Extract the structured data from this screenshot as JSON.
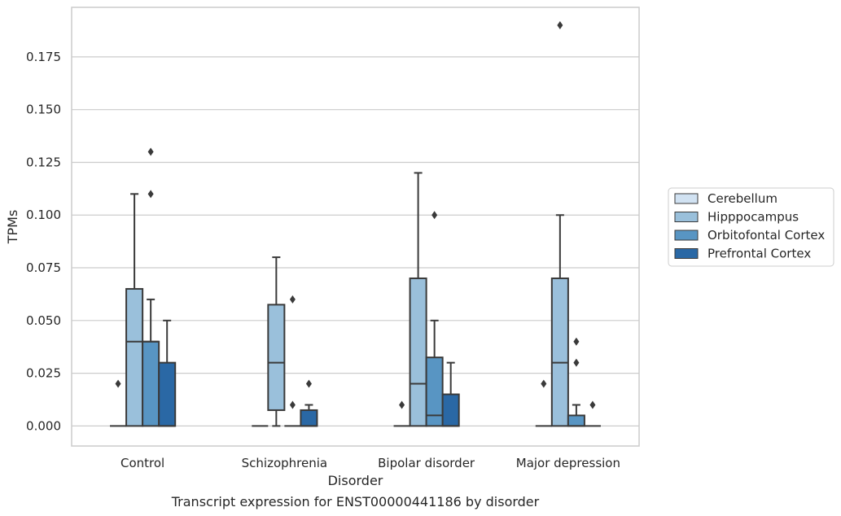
{
  "chart_data": {
    "type": "box",
    "caption": "Transcript expression for ENST00000441186 by disorder",
    "xlabel": "Disorder",
    "ylabel": "TPMs",
    "ylim": [
      -0.0095,
      0.1985
    ],
    "yticks": [
      0.0,
      0.025,
      0.05,
      0.075,
      0.1,
      0.125,
      0.15,
      0.175
    ],
    "ytick_labels": [
      "0.000",
      "0.025",
      "0.050",
      "0.075",
      "0.100",
      "0.125",
      "0.150",
      "0.175"
    ],
    "grid": true,
    "legend_position": "right",
    "categories": [
      "Control",
      "Schizophrenia",
      "Bipolar disorder",
      "Major depression"
    ],
    "series": [
      {
        "name": "Cerebellum",
        "color": "#d1e2f2",
        "boxes": [
          {
            "q1": 0,
            "median": 0,
            "q3": 0,
            "whisker_low": 0,
            "whisker_high": 0,
            "outliers": [
              0.02
            ]
          },
          {
            "q1": 0,
            "median": 0,
            "q3": 0,
            "whisker_low": 0,
            "whisker_high": 0,
            "outliers": []
          },
          {
            "q1": 0,
            "median": 0,
            "q3": 0,
            "whisker_low": 0,
            "whisker_high": 0,
            "outliers": [
              0.01
            ]
          },
          {
            "q1": 0,
            "median": 0,
            "q3": 0,
            "whisker_low": 0,
            "whisker_high": 0,
            "outliers": [
              0.02
            ]
          }
        ]
      },
      {
        "name": "Hipppocampus",
        "color": "#9ac0db",
        "boxes": [
          {
            "q1": 0,
            "median": 0.04,
            "q3": 0.065,
            "whisker_low": 0,
            "whisker_high": 0.11,
            "outliers": []
          },
          {
            "q1": 0.0075,
            "median": 0.03,
            "q3": 0.0575,
            "whisker_low": 0,
            "whisker_high": 0.08,
            "outliers": []
          },
          {
            "q1": 0,
            "median": 0.02,
            "q3": 0.07,
            "whisker_low": 0,
            "whisker_high": 0.12,
            "outliers": []
          },
          {
            "q1": 0,
            "median": 0.03,
            "q3": 0.07,
            "whisker_low": 0,
            "whisker_high": 0.1,
            "outliers": [
              0.19
            ]
          }
        ]
      },
      {
        "name": "Orbitofontal Cortex",
        "color": "#5895c3",
        "boxes": [
          {
            "q1": 0,
            "median": 0.04,
            "q3": 0.04,
            "whisker_low": 0,
            "whisker_high": 0.06,
            "outliers": [
              0.11,
              0.13
            ]
          },
          {
            "q1": 0,
            "median": 0,
            "q3": 0,
            "whisker_low": 0,
            "whisker_high": 0,
            "outliers": [
              0.01,
              0.06
            ]
          },
          {
            "q1": 0,
            "median": 0.005,
            "q3": 0.0325,
            "whisker_low": 0,
            "whisker_high": 0.05,
            "outliers": [
              0.1
            ]
          },
          {
            "q1": 0,
            "median": 0,
            "q3": 0.005,
            "whisker_low": 0,
            "whisker_high": 0.01,
            "outliers": [
              0.03,
              0.04
            ]
          }
        ]
      },
      {
        "name": "Prefrontal Cortex",
        "color": "#2a68a5",
        "boxes": [
          {
            "q1": 0,
            "median": 0,
            "q3": 0.03,
            "whisker_low": 0,
            "whisker_high": 0.05,
            "outliers": []
          },
          {
            "q1": 0,
            "median": 0,
            "q3": 0.0075,
            "whisker_low": 0,
            "whisker_high": 0.01,
            "outliers": [
              0.02
            ]
          },
          {
            "q1": 0,
            "median": 0,
            "q3": 0.015,
            "whisker_low": 0,
            "whisker_high": 0.03,
            "outliers": []
          },
          {
            "q1": 0,
            "median": 0,
            "q3": 0,
            "whisker_low": 0,
            "whisker_high": 0,
            "outliers": [
              0.01
            ]
          }
        ]
      }
    ]
  }
}
